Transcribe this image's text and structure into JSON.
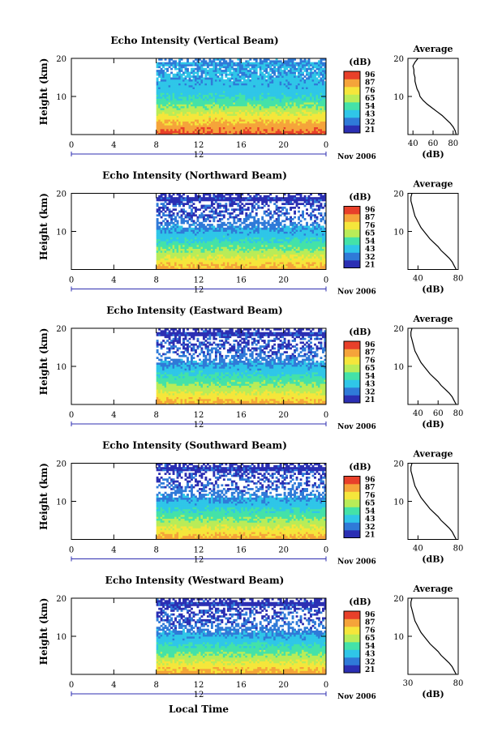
{
  "figure": {
    "xlabel_bottom": "Local Time",
    "date_label": "Nov 2006",
    "colorbar_unit": "(dB)",
    "colorbar_ticks": [
      "96",
      "87",
      "76",
      "65",
      "54",
      "43",
      "32",
      "21"
    ],
    "average_title": "Average",
    "average_xlabel": "(dB)",
    "ylabel": "Height (km)",
    "colors": {
      "white": "#ffffff",
      "scale": [
        "#2b2fb3",
        "#2f7ad8",
        "#2fc6e8",
        "#44e2a8",
        "#b9ec58",
        "#f5e63b",
        "#f5a43a",
        "#e8402a"
      ]
    }
  },
  "chart_data": [
    {
      "type": "heatmap",
      "title": "Echo Intensity (Vertical Beam)",
      "ylabel": "Height (km)",
      "x_ticks": [
        "0",
        "4",
        "8",
        "12",
        "16",
        "20",
        "0"
      ],
      "y_ticks": [
        "20",
        "10"
      ],
      "day_labels": [
        "12"
      ],
      "xlim": [
        0,
        24
      ],
      "ylim": [
        0,
        20
      ],
      "data_start_hour": 8,
      "color_range_db": [
        21,
        96
      ],
      "profile_db": [
        [
          0,
          90
        ],
        [
          1,
          86
        ],
        [
          2,
          83
        ],
        [
          3,
          79
        ],
        [
          4,
          75
        ],
        [
          5,
          71
        ],
        [
          6,
          66
        ],
        [
          7,
          60
        ],
        [
          8,
          56
        ],
        [
          9,
          52
        ],
        [
          10,
          48
        ],
        [
          11,
          45
        ],
        [
          12,
          44
        ],
        [
          13,
          43
        ],
        [
          14,
          42
        ],
        [
          15,
          41
        ],
        [
          16,
          40
        ],
        [
          17,
          39
        ],
        [
          18,
          39
        ],
        [
          19,
          40
        ],
        [
          20,
          40
        ]
      ],
      "average": {
        "type": "line",
        "x_ticks": [
          "40",
          "60",
          "80"
        ],
        "xlim": [
          35,
          85
        ],
        "y_ticks": [
          "20",
          "10"
        ],
        "ylim": [
          0,
          20
        ],
        "profile": [
          [
            0,
            83
          ],
          [
            1,
            82
          ],
          [
            2,
            80
          ],
          [
            3,
            77
          ],
          [
            4,
            73
          ],
          [
            5,
            69
          ],
          [
            6,
            64
          ],
          [
            7,
            59
          ],
          [
            8,
            54
          ],
          [
            9,
            50
          ],
          [
            10,
            47
          ],
          [
            11,
            46
          ],
          [
            12,
            44
          ],
          [
            13,
            43
          ],
          [
            14,
            42
          ],
          [
            15,
            42
          ],
          [
            16,
            41
          ],
          [
            17,
            41
          ],
          [
            18,
            40
          ],
          [
            19,
            42
          ],
          [
            20,
            45
          ]
        ]
      }
    },
    {
      "type": "heatmap",
      "title": "Echo Intensity (Northward Beam)",
      "ylabel": "Height (km)",
      "x_ticks": [
        "0",
        "4",
        "8",
        "12",
        "16",
        "20",
        "0"
      ],
      "y_ticks": [
        "20",
        "10"
      ],
      "day_labels": [
        "12"
      ],
      "xlim": [
        0,
        24
      ],
      "ylim": [
        0,
        20
      ],
      "data_start_hour": 8,
      "color_range_db": [
        21,
        96
      ],
      "profile_db": [
        [
          0,
          82
        ],
        [
          1,
          78
        ],
        [
          2,
          74
        ],
        [
          3,
          69
        ],
        [
          4,
          64
        ],
        [
          5,
          60
        ],
        [
          6,
          56
        ],
        [
          7,
          52
        ],
        [
          8,
          48
        ],
        [
          9,
          44
        ],
        [
          10,
          41
        ],
        [
          11,
          38
        ],
        [
          12,
          35
        ],
        [
          13,
          33
        ],
        [
          14,
          31
        ],
        [
          15,
          30
        ],
        [
          16,
          29
        ],
        [
          17,
          29
        ],
        [
          18,
          28
        ],
        [
          19,
          27
        ],
        [
          20,
          26
        ]
      ],
      "average": {
        "type": "line",
        "x_ticks": [
          "40",
          "80"
        ],
        "xlim": [
          30,
          80
        ],
        "y_ticks": [
          "20",
          "10"
        ],
        "ylim": [
          0,
          20
        ],
        "profile": [
          [
            0,
            78
          ],
          [
            1,
            76
          ],
          [
            2,
            74
          ],
          [
            3,
            71
          ],
          [
            4,
            67
          ],
          [
            5,
            63
          ],
          [
            6,
            60
          ],
          [
            7,
            56
          ],
          [
            8,
            52
          ],
          [
            9,
            49
          ],
          [
            10,
            46
          ],
          [
            11,
            43
          ],
          [
            12,
            41
          ],
          [
            13,
            39
          ],
          [
            14,
            37
          ],
          [
            15,
            36
          ],
          [
            16,
            35
          ],
          [
            17,
            34
          ],
          [
            18,
            33
          ],
          [
            19,
            33
          ],
          [
            20,
            34
          ]
        ]
      }
    },
    {
      "type": "heatmap",
      "title": "Echo Intensity (Eastward Beam)",
      "ylabel": "Height (km)",
      "x_ticks": [
        "0",
        "4",
        "8",
        "12",
        "16",
        "20",
        "0"
      ],
      "y_ticks": [
        "20",
        "10"
      ],
      "day_labels": [
        "12"
      ],
      "xlim": [
        0,
        24
      ],
      "ylim": [
        0,
        20
      ],
      "data_start_hour": 8,
      "color_range_db": [
        21,
        96
      ],
      "profile_db": [
        [
          0,
          82
        ],
        [
          1,
          78
        ],
        [
          2,
          74
        ],
        [
          3,
          69
        ],
        [
          4,
          64
        ],
        [
          5,
          60
        ],
        [
          6,
          56
        ],
        [
          7,
          52
        ],
        [
          8,
          48
        ],
        [
          9,
          44
        ],
        [
          10,
          41
        ],
        [
          11,
          38
        ],
        [
          12,
          35
        ],
        [
          13,
          33
        ],
        [
          14,
          31
        ],
        [
          15,
          30
        ],
        [
          16,
          29
        ],
        [
          17,
          29
        ],
        [
          18,
          28
        ],
        [
          19,
          27
        ],
        [
          20,
          26
        ]
      ],
      "average": {
        "type": "line",
        "x_ticks": [
          "40",
          "60",
          "80"
        ],
        "xlim": [
          30,
          80
        ],
        "y_ticks": [
          "20",
          "10"
        ],
        "ylim": [
          0,
          20
        ],
        "profile": [
          [
            0,
            78
          ],
          [
            1,
            76
          ],
          [
            2,
            74
          ],
          [
            3,
            71
          ],
          [
            4,
            67
          ],
          [
            5,
            63
          ],
          [
            6,
            60
          ],
          [
            7,
            56
          ],
          [
            8,
            52
          ],
          [
            9,
            49
          ],
          [
            10,
            46
          ],
          [
            11,
            43
          ],
          [
            12,
            41
          ],
          [
            13,
            39
          ],
          [
            14,
            37
          ],
          [
            15,
            36
          ],
          [
            16,
            35
          ],
          [
            17,
            34
          ],
          [
            18,
            33
          ],
          [
            19,
            33
          ],
          [
            20,
            34
          ]
        ]
      }
    },
    {
      "type": "heatmap",
      "title": "Echo Intensity (Southward Beam)",
      "ylabel": "Height (km)",
      "x_ticks": [
        "0",
        "4",
        "8",
        "12",
        "16",
        "20",
        "0"
      ],
      "y_ticks": [
        "20",
        "10"
      ],
      "day_labels": [
        "12"
      ],
      "xlim": [
        0,
        24
      ],
      "ylim": [
        0,
        20
      ],
      "data_start_hour": 8,
      "color_range_db": [
        21,
        96
      ],
      "profile_db": [
        [
          0,
          82
        ],
        [
          1,
          78
        ],
        [
          2,
          74
        ],
        [
          3,
          69
        ],
        [
          4,
          64
        ],
        [
          5,
          60
        ],
        [
          6,
          56
        ],
        [
          7,
          52
        ],
        [
          8,
          48
        ],
        [
          9,
          44
        ],
        [
          10,
          41
        ],
        [
          11,
          38
        ],
        [
          12,
          35
        ],
        [
          13,
          33
        ],
        [
          14,
          31
        ],
        [
          15,
          30
        ],
        [
          16,
          29
        ],
        [
          17,
          29
        ],
        [
          18,
          28
        ],
        [
          19,
          27
        ],
        [
          20,
          26
        ]
      ],
      "average": {
        "type": "line",
        "x_ticks": [
          "40",
          "80"
        ],
        "xlim": [
          30,
          80
        ],
        "y_ticks": [
          "20",
          "10"
        ],
        "ylim": [
          0,
          20
        ],
        "profile": [
          [
            0,
            78
          ],
          [
            1,
            76
          ],
          [
            2,
            74
          ],
          [
            3,
            71
          ],
          [
            4,
            67
          ],
          [
            5,
            63
          ],
          [
            6,
            60
          ],
          [
            7,
            56
          ],
          [
            8,
            52
          ],
          [
            9,
            49
          ],
          [
            10,
            46
          ],
          [
            11,
            43
          ],
          [
            12,
            41
          ],
          [
            13,
            39
          ],
          [
            14,
            37
          ],
          [
            15,
            36
          ],
          [
            16,
            35
          ],
          [
            17,
            34
          ],
          [
            18,
            33
          ],
          [
            19,
            33
          ],
          [
            20,
            34
          ]
        ]
      }
    },
    {
      "type": "heatmap",
      "title": "Echo Intensity (Westward Beam)",
      "ylabel": "Height (km)",
      "x_ticks": [
        "0",
        "4",
        "8",
        "12",
        "16",
        "20",
        "0"
      ],
      "y_ticks": [
        "20",
        "10"
      ],
      "day_labels": [
        "12"
      ],
      "xlim": [
        0,
        24
      ],
      "ylim": [
        0,
        20
      ],
      "data_start_hour": 8,
      "color_range_db": [
        21,
        96
      ],
      "profile_db": [
        [
          0,
          82
        ],
        [
          1,
          78
        ],
        [
          2,
          74
        ],
        [
          3,
          69
        ],
        [
          4,
          64
        ],
        [
          5,
          60
        ],
        [
          6,
          56
        ],
        [
          7,
          52
        ],
        [
          8,
          48
        ],
        [
          9,
          44
        ],
        [
          10,
          41
        ],
        [
          11,
          38
        ],
        [
          12,
          35
        ],
        [
          13,
          33
        ],
        [
          14,
          31
        ],
        [
          15,
          30
        ],
        [
          16,
          29
        ],
        [
          17,
          29
        ],
        [
          18,
          28
        ],
        [
          19,
          27
        ],
        [
          20,
          26
        ]
      ],
      "average": {
        "type": "line",
        "x_ticks": [
          "30",
          "80"
        ],
        "xlim": [
          30,
          80
        ],
        "y_ticks": [
          "20",
          "10"
        ],
        "ylim": [
          0,
          20
        ],
        "profile": [
          [
            0,
            78
          ],
          [
            1,
            76
          ],
          [
            2,
            74
          ],
          [
            3,
            71
          ],
          [
            4,
            67
          ],
          [
            5,
            63
          ],
          [
            6,
            60
          ],
          [
            7,
            56
          ],
          [
            8,
            52
          ],
          [
            9,
            49
          ],
          [
            10,
            46
          ],
          [
            11,
            43
          ],
          [
            12,
            41
          ],
          [
            13,
            39
          ],
          [
            14,
            37
          ],
          [
            15,
            36
          ],
          [
            16,
            35
          ],
          [
            17,
            34
          ],
          [
            18,
            33
          ],
          [
            19,
            33
          ],
          [
            20,
            34
          ]
        ]
      }
    }
  ]
}
